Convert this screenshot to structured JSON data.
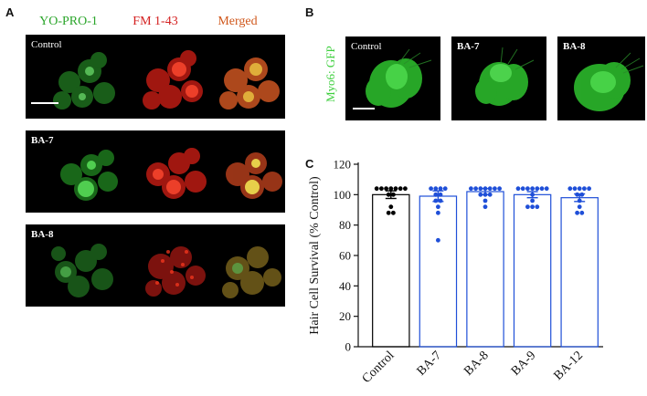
{
  "panelA": {
    "letter": "A",
    "column_titles": [
      {
        "text": "YO-PRO-1",
        "color": "#2aa52a"
      },
      {
        "text": "FM 1-43",
        "color": "#d42020"
      },
      {
        "text": "Merged",
        "color": "#d0581c"
      }
    ],
    "row_labels": [
      "Control",
      "BA-7",
      "BA-8"
    ]
  },
  "panelB": {
    "letter": "B",
    "stain_label": "Myo6: GFP",
    "image_labels": [
      "Control",
      "BA-7",
      "BA-8"
    ]
  },
  "panelC": {
    "letter": "C"
  },
  "chart_data": {
    "type": "bar",
    "categories": [
      "Control",
      "BA-7",
      "BA-8",
      "BA-9",
      "BA-12"
    ],
    "values": [
      100,
      99,
      102,
      100,
      98
    ],
    "errors": [
      2.5,
      3.5,
      2,
      2,
      2.5
    ],
    "points": [
      [
        104,
        104,
        104,
        104,
        104,
        104,
        104,
        100,
        100,
        92,
        88,
        88
      ],
      [
        104,
        104,
        104,
        104,
        100,
        100,
        96,
        96,
        92,
        88,
        70
      ],
      [
        104,
        104,
        104,
        104,
        104,
        104,
        104,
        100,
        100,
        100,
        96,
        92
      ],
      [
        104,
        104,
        104,
        104,
        104,
        104,
        104,
        100,
        96,
        92,
        92,
        92
      ],
      [
        104,
        104,
        104,
        104,
        104,
        100,
        100,
        96,
        92,
        88,
        88
      ]
    ],
    "colors": [
      "#000000",
      "#1f4fd8",
      "#1f4fd8",
      "#1f4fd8",
      "#1f4fd8"
    ],
    "title": "",
    "xlabel": "",
    "ylabel": "Hair Cell Survival (% Control)",
    "ylim": [
      0,
      120
    ],
    "yticks": [
      0,
      20,
      40,
      60,
      80,
      100,
      120
    ]
  }
}
